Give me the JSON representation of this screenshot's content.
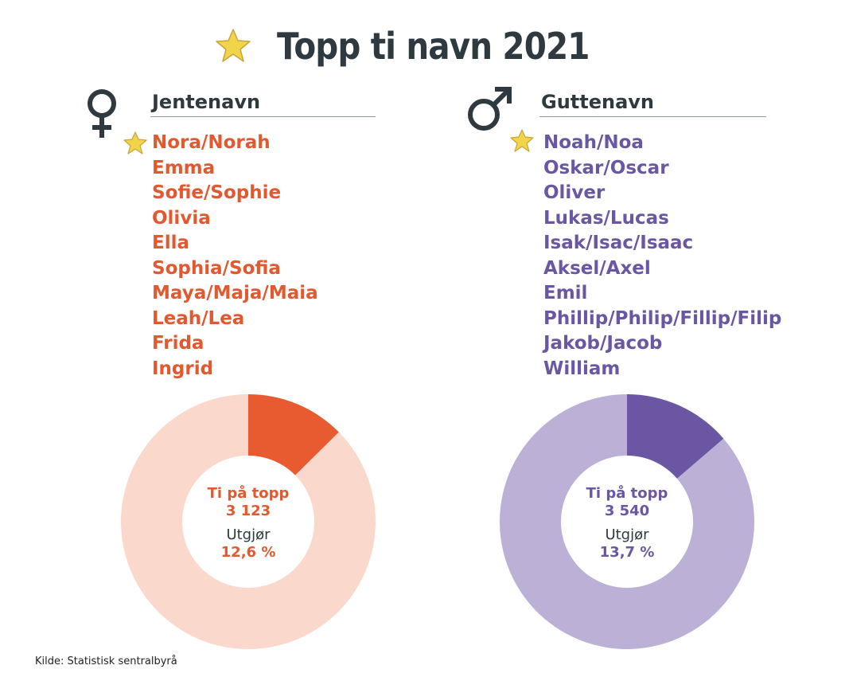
{
  "title": "Topp ti navn 2021",
  "source": "Kilde: Statistisk sentralbyrå",
  "colors": {
    "girls_text": "#e2582f",
    "girls_share": "#e85a30",
    "girls_rest": "#fbd8cc",
    "boys_text": "#6a56a3",
    "boys_share": "#6a56a3",
    "boys_rest": "#bdb0d6",
    "heading": "#2e3a3f",
    "star": "#f2d44a"
  },
  "icons": {
    "title": "star-icon",
    "girls": "female-symbol-icon",
    "boys": "male-symbol-icon"
  },
  "girls": {
    "heading": "Jentenavn",
    "names": [
      "Nora/Norah",
      "Emma",
      "Sofie/Sophie",
      "Olivia",
      "Ella",
      "Sophia/Sofia",
      "Maya/Maja/Maia",
      "Leah/Lea",
      "Frida",
      "Ingrid"
    ],
    "center_label": "Ti på topp",
    "center_count": "3 123",
    "share_label": "Utgjør",
    "share_value": "12,6 %"
  },
  "boys": {
    "heading": "Guttenavn",
    "names": [
      "Noah/Noa",
      "Oskar/Oscar",
      "Oliver",
      "Lukas/Lucas",
      "Isak/Isac/Isaac",
      "Aksel/Axel",
      "Emil",
      "Phillip/Philip/Fillip/Filip",
      "Jakob/Jacob",
      "William"
    ],
    "center_label": "Ti på topp",
    "center_count": "3 540",
    "share_label": "Utgjør",
    "share_value": "13,7 %"
  },
  "chart_data": [
    {
      "type": "pie",
      "categories": [
        "Ti på topp",
        ""
      ],
      "values": [
        12.6,
        87.4
      ],
      "unit": "%"
    },
    {
      "type": "pie",
      "categories": [
        "Ti på topp",
        ""
      ],
      "values": [
        13.7,
        86.3
      ],
      "unit": "%"
    }
  ]
}
